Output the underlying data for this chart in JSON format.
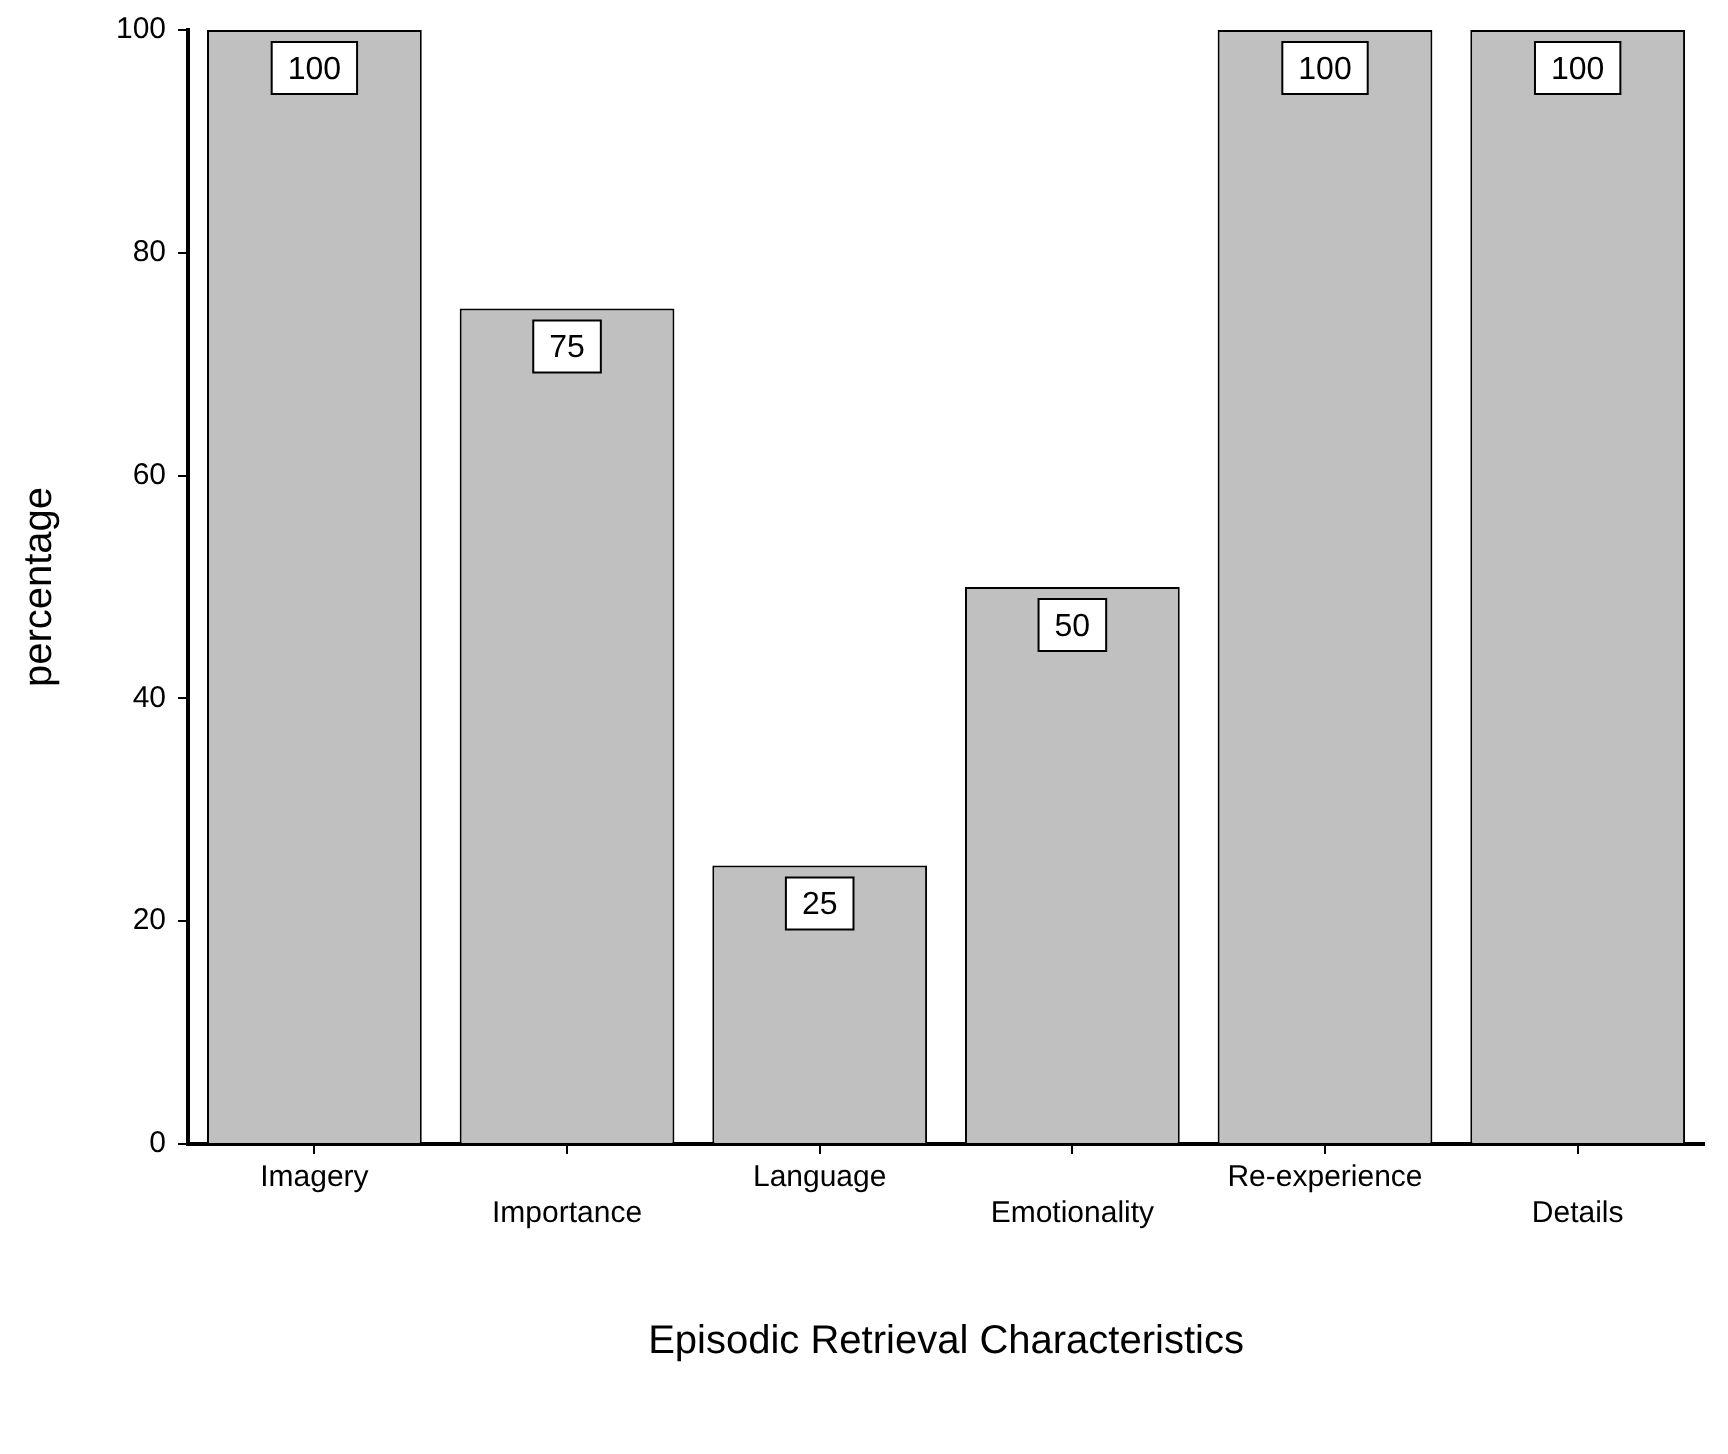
{
  "chart_data": {
    "type": "bar",
    "xlabel": "Episodic Retrieval Characteristics",
    "ylabel": "percentage",
    "categories": [
      "Imagery",
      "Importance",
      "Language",
      "Emotionality",
      "Re-experience",
      "Details"
    ],
    "values": [
      100,
      75,
      25,
      50,
      100,
      100
    ],
    "color": "#c0c0c0",
    "ylim": [
      0,
      100
    ],
    "yticks": [
      0,
      20,
      40,
      60,
      80,
      100
    ],
    "grid": false,
    "legend": false,
    "data_labels": true
  }
}
